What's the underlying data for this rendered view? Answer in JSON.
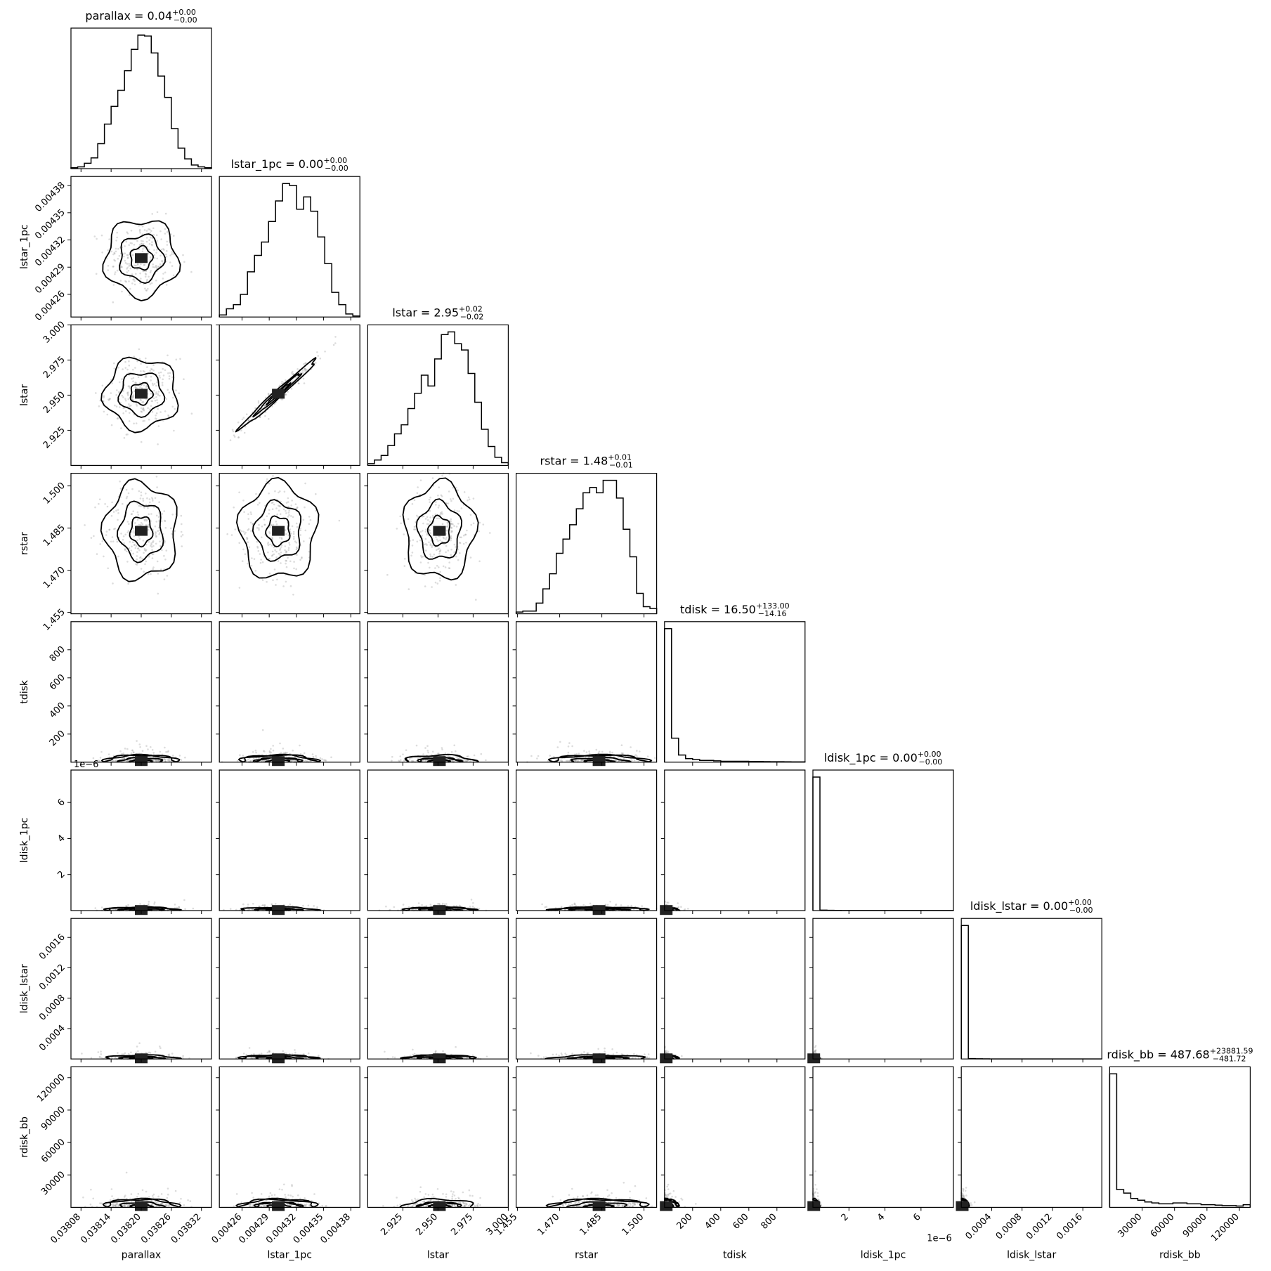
{
  "chart_data": {
    "type": "corner",
    "parameters": [
      {
        "name": "parallax",
        "title": "parallax = 0.04",
        "err_plus": "+0.00",
        "err_minus": "−0.00",
        "range": [
          0.03806,
          0.03834
        ],
        "ticks": [
          0.03808,
          0.03814,
          0.0382,
          0.03826,
          0.03832
        ],
        "tick_labels": [
          "0.03808",
          "0.03814",
          "0.03820",
          "0.03826",
          "0.03832"
        ],
        "center": 0.0382,
        "spread": 3.6e-05,
        "hist": [
          1,
          2,
          6,
          12,
          28,
          50,
          70,
          88,
          110,
          134,
          150,
          149,
          130,
          104,
          80,
          45,
          23,
          11,
          4,
          2,
          1
        ]
      },
      {
        "name": "lstar_1pc",
        "title": "lstar_1pc = 0.00",
        "err_plus": "+0.00",
        "err_minus": "−0.00",
        "range": [
          0.004235,
          0.00439
        ],
        "ticks": [
          0.00426,
          0.00429,
          0.00432,
          0.00435,
          0.00438
        ],
        "tick_labels": [
          "0.00426",
          "0.00429",
          "0.00432",
          "0.00435",
          "0.00438"
        ],
        "center": 0.0043,
        "spread": 2.1e-05,
        "hist": [
          2,
          8,
          12,
          22,
          44,
          60,
          73,
          93,
          113,
          130,
          128,
          105,
          117,
          103,
          78,
          52,
          24,
          12,
          3,
          1
        ]
      },
      {
        "name": "lstar",
        "title": "lstar = 2.95",
        "err_plus": "+0.02",
        "err_minus": "−0.02",
        "range": [
          2.9,
          3.0
        ],
        "ticks": [
          2.925,
          2.95,
          2.975,
          3.0
        ],
        "tick_labels": [
          "2.925",
          "2.950",
          "2.975",
          "3.000"
        ],
        "center": 2.951,
        "spread": 0.0125,
        "hist": [
          2,
          6,
          11,
          22,
          35,
          45,
          63,
          80,
          100,
          88,
          118,
          145,
          148,
          135,
          128,
          102,
          70,
          40,
          21,
          9,
          3
        ]
      },
      {
        "name": "rstar",
        "title": "rstar = 1.48",
        "err_plus": "+0.01",
        "err_minus": "−0.01",
        "range": [
          1.4545,
          1.5045
        ],
        "ticks": [
          1.455,
          1.47,
          1.485,
          1.5
        ],
        "tick_labels": [
          "1.455",
          "1.470",
          "1.485",
          "1.500"
        ],
        "center": 1.484,
        "spread": 0.0085,
        "hist": [
          2,
          3,
          3,
          12,
          28,
          45,
          68,
          84,
          100,
          118,
          136,
          142,
          136,
          150,
          150,
          130,
          95,
          64,
          23,
          8,
          6
        ]
      },
      {
        "name": "tdisk",
        "title": "tdisk = 16.50",
        "err_plus": "+133.00",
        "err_minus": "−14.16",
        "range": [
          0,
          1000
        ],
        "ticks": [
          200,
          400,
          600,
          800
        ],
        "tick_labels": [
          "200",
          "400",
          "600",
          "800"
        ],
        "center": 10,
        "spread": 40,
        "hist": [
          150,
          27,
          8,
          4,
          3,
          2,
          2,
          1.5,
          1,
          1,
          1,
          1,
          0.8,
          0.8,
          0.6,
          0.5,
          0.5,
          0.4,
          0.3,
          0.3
        ]
      },
      {
        "name": "ldisk_1pc",
        "title": "ldisk_1pc = 0.00",
        "err_plus": "+0.00",
        "err_minus": "−0.00",
        "range": [
          0,
          7.8e-06
        ],
        "ticks": [
          2e-06,
          4e-06,
          6e-06
        ],
        "tick_labels": [
          "2",
          "4",
          "6"
        ],
        "offset_label": "1e−6",
        "center": 1e-07,
        "spread": 1.5e-07,
        "hist": [
          150,
          0.5,
          0.3,
          0.2,
          0.1,
          0.1,
          0.1,
          0.1,
          0.1,
          0.1,
          0.1,
          0.1,
          0.1,
          0.1,
          0.1,
          0.1,
          0.1,
          0.1,
          0.1,
          0.1
        ]
      },
      {
        "name": "ldisk_lstar",
        "title": "ldisk_lstar = 0.00",
        "err_plus": "+0.00",
        "err_minus": "−0.00",
        "range": [
          0,
          0.00185
        ],
        "ticks": [
          0.0004,
          0.0008,
          0.0012,
          0.0016
        ],
        "tick_labels": [
          "0.0004",
          "0.0008",
          "0.0012",
          "0.0016"
        ],
        "center": 2e-05,
        "spread": 4e-05,
        "hist": [
          150,
          0.5,
          0.3,
          0.2,
          0.1,
          0.1,
          0.1,
          0.1,
          0.1,
          0.1,
          0.1,
          0.1,
          0.1,
          0.1,
          0.1,
          0.1,
          0.1,
          0.1,
          0.1,
          0.1
        ]
      },
      {
        "name": "rdisk_bb",
        "title": "rdisk_bb = 487.68",
        "err_plus": "+23881.59",
        "err_minus": "−481.72",
        "range": [
          0,
          130000
        ],
        "ticks": [
          30000,
          60000,
          90000,
          120000
        ],
        "tick_labels": [
          "30000",
          "60000",
          "90000",
          "120000"
        ],
        "center": 800,
        "spread": 6000,
        "hist": [
          150,
          20,
          16,
          10,
          8,
          6,
          5,
          4,
          4,
          5,
          5,
          4,
          4,
          3,
          3,
          2.5,
          2,
          2,
          1.5,
          3
        ]
      }
    ],
    "axis_labels": [
      "parallax",
      "lstar_1pc",
      "lstar",
      "rstar",
      "tdisk",
      "ldisk_1pc",
      "ldisk_lstar",
      "rdisk_bb"
    ]
  }
}
